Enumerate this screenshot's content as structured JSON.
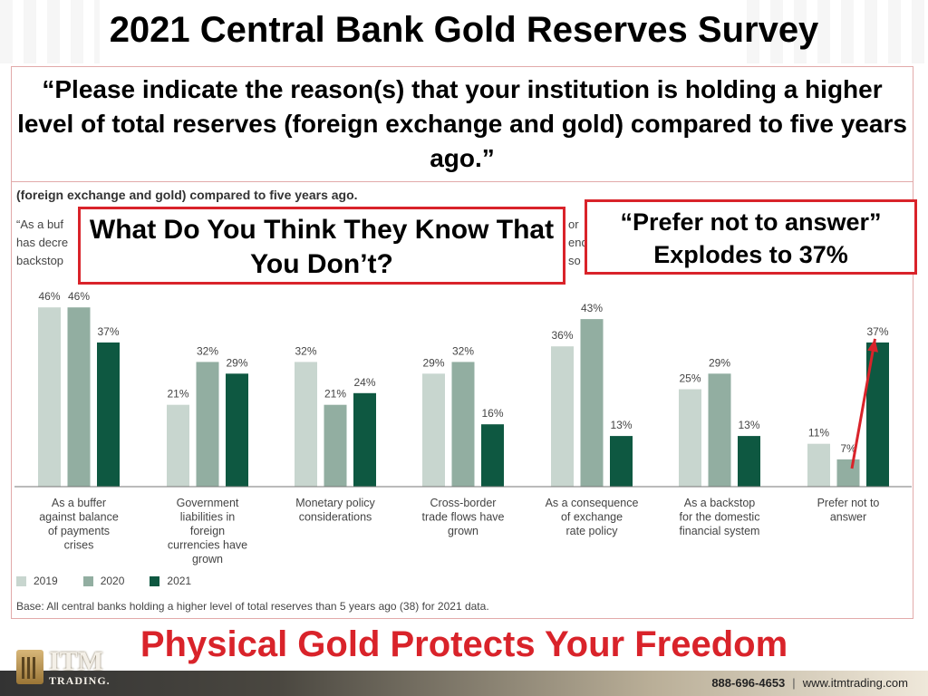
{
  "page": {
    "title": "2021 Central Bank Gold Reserves Survey",
    "question": "“Please indicate the reason(s) that your institution is holding a higher level of total reserves (foreign exchange and gold) compared to five years ago.”",
    "subtitle": "(foreign exchange and gold) compared to five years ago.",
    "quote_fragments": [
      "“As a buf",
      "has decre",
      "backstop",
      "or",
      "end",
      "so"
    ],
    "callout_left": "What Do You Think They Know That You Don’t?",
    "callout_right": "“Prefer not to answer” Explodes to 37%",
    "base_note": "Base: All central banks holding a higher level of total reserves than 5 years ago (38) for 2021 data.",
    "footer_title": "Physical Gold Protects Your Freedom",
    "brand": {
      "name": "ITM",
      "sub": "TRADING."
    },
    "contact": {
      "phone": "888-696-4653",
      "separator": "|",
      "website": "www.itmtrading.com"
    }
  },
  "colors": {
    "s2019": "#c8d6cf",
    "s2020": "#92aea1",
    "s2021": "#0e5841",
    "accent_red": "#d9232a"
  },
  "chart_data": {
    "type": "bar",
    "categories": [
      [
        "As a buffer",
        "against balance",
        "of payments",
        "crises"
      ],
      [
        "Government",
        "liabilities in",
        "foreign",
        "currencies have",
        "grown"
      ],
      [
        "Monetary policy",
        "considerations"
      ],
      [
        "Cross-border",
        "trade flows have",
        "grown"
      ],
      [
        "As a consequence",
        "of exchange",
        "rate policy"
      ],
      [
        "As a backstop",
        "for the domestic",
        "financial system"
      ],
      [
        "Prefer not to",
        "answer"
      ]
    ],
    "series": [
      {
        "name": "2019",
        "values": [
          46,
          21,
          32,
          29,
          36,
          25,
          11
        ]
      },
      {
        "name": "2020",
        "values": [
          46,
          32,
          21,
          32,
          43,
          29,
          7
        ]
      },
      {
        "name": "2021",
        "values": [
          37,
          29,
          24,
          16,
          13,
          13,
          37
        ]
      }
    ],
    "value_suffix": "%",
    "ylim": [
      0,
      50
    ],
    "grid": false,
    "legend_position": "bottom-left",
    "annotation": {
      "type": "arrow",
      "from_series": "2020",
      "to_series": "2021",
      "category_index": 6,
      "color": "#d9232a"
    }
  }
}
